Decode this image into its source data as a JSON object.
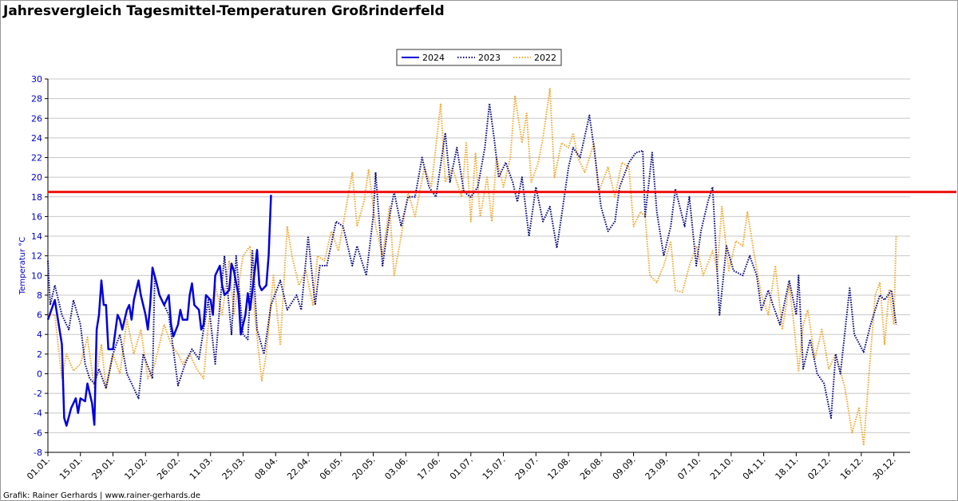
{
  "chart_data": {
    "type": "line",
    "title": "Jahresvergleich Tagesmittel-Temperaturen Großrinderfeld",
    "ylabel": "Temperatur °C",
    "footer": "Grafik: Rainer Gerhards | www.rainer-gerhards.de",
    "xlim": [
      0,
      371
    ],
    "ylim": [
      -8,
      30
    ],
    "yticks": [
      -8,
      -6,
      -4,
      -2,
      0,
      2,
      4,
      6,
      8,
      10,
      12,
      14,
      16,
      18,
      20,
      22,
      24,
      26,
      28,
      30
    ],
    "xticks": [
      {
        "value": 0,
        "label": "01.01."
      },
      {
        "value": 14,
        "label": "15.01."
      },
      {
        "value": 28,
        "label": "29.01."
      },
      {
        "value": 42,
        "label": "12.02."
      },
      {
        "value": 56,
        "label": "26.02."
      },
      {
        "value": 70,
        "label": "11.03."
      },
      {
        "value": 84,
        "label": "25.03."
      },
      {
        "value": 98,
        "label": "08.04."
      },
      {
        "value": 112,
        "label": "22.04."
      },
      {
        "value": 126,
        "label": "06.05."
      },
      {
        "value": 140,
        "label": "20.05."
      },
      {
        "value": 154,
        "label": "03.06."
      },
      {
        "value": 168,
        "label": "17.06."
      },
      {
        "value": 182,
        "label": "01.07."
      },
      {
        "value": 196,
        "label": "15.07."
      },
      {
        "value": 210,
        "label": "29.07."
      },
      {
        "value": 224,
        "label": "12.08."
      },
      {
        "value": 238,
        "label": "26.08."
      },
      {
        "value": 252,
        "label": "09.09."
      },
      {
        "value": 266,
        "label": "23.09."
      },
      {
        "value": 280,
        "label": "07.10."
      },
      {
        "value": 294,
        "label": "21.10."
      },
      {
        "value": 308,
        "label": "04.11."
      },
      {
        "value": 322,
        "label": "18.11."
      },
      {
        "value": 336,
        "label": "02.12."
      },
      {
        "value": 350,
        "label": "16.12."
      },
      {
        "value": 364,
        "label": "30.12."
      }
    ],
    "grid": true,
    "legend": "top",
    "reference_line": {
      "value": 18.5,
      "color": "#ee1111"
    },
    "series": [
      {
        "name": "2024",
        "color": "#0000dd",
        "dash": "solid",
        "x": [
          0,
          3,
          4,
          6,
          7,
          8,
          10,
          12,
          13,
          14,
          16,
          17,
          19,
          20,
          21,
          22,
          23,
          24,
          25,
          26,
          28,
          30,
          31,
          32,
          34,
          35,
          36,
          37,
          39,
          40,
          42,
          43,
          44,
          45,
          47,
          48,
          50,
          51,
          52,
          53,
          54,
          56,
          57,
          58,
          60,
          61,
          62,
          63,
          65,
          66,
          67,
          68,
          70,
          71,
          72,
          74,
          75,
          76,
          78,
          79,
          80,
          82,
          83,
          85,
          86,
          87,
          89,
          90,
          91,
          92,
          94,
          95,
          96
        ],
        "values": [
          5.5,
          7.5,
          6,
          3,
          -4.5,
          -5.3,
          -3.5,
          -2.5,
          -4,
          -2.5,
          -2.8,
          -1,
          -3,
          -5.2,
          4.5,
          6,
          9.5,
          7,
          7,
          2.5,
          2.5,
          6,
          5.5,
          4.5,
          6.5,
          7,
          5.5,
          7.5,
          9.5,
          8,
          6,
          4.5,
          7,
          10.8,
          9,
          8,
          7,
          7.5,
          8,
          5,
          3.8,
          5,
          6.5,
          5.5,
          5.5,
          8,
          9.2,
          7,
          6.5,
          4.5,
          5,
          8,
          7.5,
          6,
          10,
          11,
          9,
          8,
          8.5,
          11.2,
          10.5,
          8,
          4,
          6,
          8.2,
          6.5,
          10.5,
          12.6,
          9,
          8.5,
          9,
          12,
          18.2
        ]
      },
      {
        "name": "2023",
        "color": "#00007a",
        "dash": "dotted",
        "x": [
          0,
          1,
          3,
          6,
          9,
          11,
          14,
          16,
          18,
          20,
          22,
          25,
          28,
          31,
          34,
          39,
          41,
          45,
          46,
          48,
          52,
          56,
          59,
          62,
          65,
          67,
          69,
          72,
          74,
          76,
          79,
          81,
          84,
          86,
          88,
          90,
          93,
          96,
          100,
          103,
          107,
          109,
          112,
          115,
          117,
          120,
          124,
          127,
          131,
          133,
          137,
          140,
          141,
          144,
          147,
          149,
          152,
          155,
          158,
          161,
          164,
          167,
          171,
          173,
          176,
          179,
          182,
          185,
          188,
          190,
          192,
          194,
          197,
          200,
          202,
          204,
          207,
          210,
          213,
          216,
          219,
          221,
          224,
          226,
          229,
          233,
          235,
          238,
          241,
          244,
          246,
          250,
          253,
          256,
          257,
          260,
          262,
          265,
          268,
          270,
          274,
          276,
          279,
          281,
          284,
          286,
          289,
          292,
          295,
          299,
          302,
          305,
          307,
          310,
          312,
          315,
          319,
          322,
          323,
          325,
          328,
          331,
          334,
          337,
          339,
          341,
          345,
          347,
          351,
          354,
          358,
          360,
          363,
          365
        ],
        "values": [
          11.5,
          7,
          9,
          6,
          4.5,
          7.5,
          5,
          1,
          -0.5,
          -1,
          0.5,
          -1.5,
          2,
          4,
          0,
          -2.5,
          2,
          -0.5,
          10,
          8,
          6,
          -1.2,
          1,
          2.5,
          1.5,
          4.5,
          7.5,
          1,
          7,
          12,
          4,
          12,
          4,
          3.5,
          12.5,
          4.5,
          2,
          7,
          9.5,
          6.5,
          8,
          6.5,
          14,
          7,
          11,
          11,
          15.5,
          15,
          11,
          13,
          10,
          16,
          20.5,
          11,
          16,
          18.5,
          15,
          18,
          18,
          22,
          19,
          18,
          24.5,
          19.5,
          23,
          18.5,
          18,
          19,
          23,
          27.5,
          24,
          20,
          21.5,
          19.5,
          17.5,
          20,
          14,
          19,
          15.5,
          17,
          12.8,
          16,
          21,
          23,
          22,
          26.3,
          23,
          17,
          14.5,
          15.5,
          19,
          21.5,
          22.5,
          22.7,
          16,
          22.5,
          16.5,
          12,
          15,
          18.8,
          15,
          18,
          11,
          14.5,
          17.5,
          19,
          6,
          13,
          10.5,
          10,
          12,
          10,
          6.5,
          8.5,
          7,
          5,
          9.5,
          6,
          10,
          0.5,
          3.5,
          0,
          -1,
          -4.5,
          2,
          0,
          8.7,
          4,
          2.2,
          5,
          8,
          7.5,
          8.5,
          5
        ]
      },
      {
        "name": "2022",
        "color": "#f0a830",
        "dash": "dotted",
        "x": [
          0,
          3,
          6,
          8,
          11,
          14,
          17,
          20,
          23,
          25,
          28,
          31,
          34,
          37,
          40,
          43,
          46,
          50,
          53,
          56,
          58,
          61,
          64,
          67,
          69,
          72,
          75,
          78,
          80,
          84,
          87,
          89,
          92,
          94,
          97,
          100,
          103,
          105,
          108,
          111,
          114,
          116,
          119,
          122,
          125,
          128,
          131,
          133,
          136,
          138,
          141,
          144,
          147,
          149,
          152,
          155,
          158,
          162,
          165,
          169,
          171,
          174,
          178,
          180,
          182,
          184,
          186,
          189,
          191,
          193,
          196,
          199,
          201,
          204,
          206,
          208,
          211,
          213,
          216,
          218,
          221,
          224,
          226,
          228,
          231,
          235,
          237,
          241,
          244,
          247,
          250,
          252,
          255,
          257,
          259,
          262,
          265,
          268,
          270,
          273,
          276,
          279,
          282,
          286,
          288,
          290,
          293,
          296,
          299,
          301,
          304,
          307,
          310,
          313,
          316,
          319,
          321,
          323,
          325,
          327,
          330,
          333,
          336,
          339,
          343,
          346,
          349,
          351,
          353,
          356,
          358,
          360,
          362,
          364,
          365
        ],
        "values": [
          6,
          6,
          -0.5,
          2,
          0.3,
          1,
          3.7,
          -1.5,
          3,
          -1.5,
          2,
          0,
          5.5,
          2,
          4.5,
          -0.5,
          1,
          5,
          3,
          2,
          1,
          2,
          0.5,
          -0.5,
          5,
          9,
          6,
          11.5,
          6,
          12,
          13,
          6,
          -0.7,
          2,
          10,
          3,
          15,
          12,
          9,
          10.5,
          7,
          12,
          11.5,
          14.5,
          12.5,
          16.5,
          20.5,
          15,
          17.5,
          20.8,
          15,
          12,
          17,
          10,
          14,
          18.5,
          16,
          21,
          19,
          27.5,
          19.5,
          21,
          18,
          23.5,
          15.5,
          22.5,
          16,
          20,
          15.5,
          22,
          19,
          22,
          28.3,
          23.5,
          26.5,
          19.5,
          21.5,
          24,
          29,
          20,
          23.5,
          23,
          24.5,
          22,
          20.5,
          23.5,
          18.5,
          21,
          18,
          21.5,
          21,
          15,
          16.5,
          16,
          10,
          9.3,
          11,
          13.5,
          8.5,
          8.3,
          11,
          13,
          10,
          12.5,
          10.5,
          17,
          10.5,
          13.5,
          13,
          16.5,
          12,
          8,
          6,
          11,
          4.5,
          9,
          5,
          0.2,
          5,
          6.5,
          1.5,
          4.5,
          0.5,
          2,
          -1.5,
          -6,
          -3.5,
          -7.3,
          -1,
          8,
          9.3,
          3,
          8.5,
          5,
          14
        ]
      }
    ]
  }
}
